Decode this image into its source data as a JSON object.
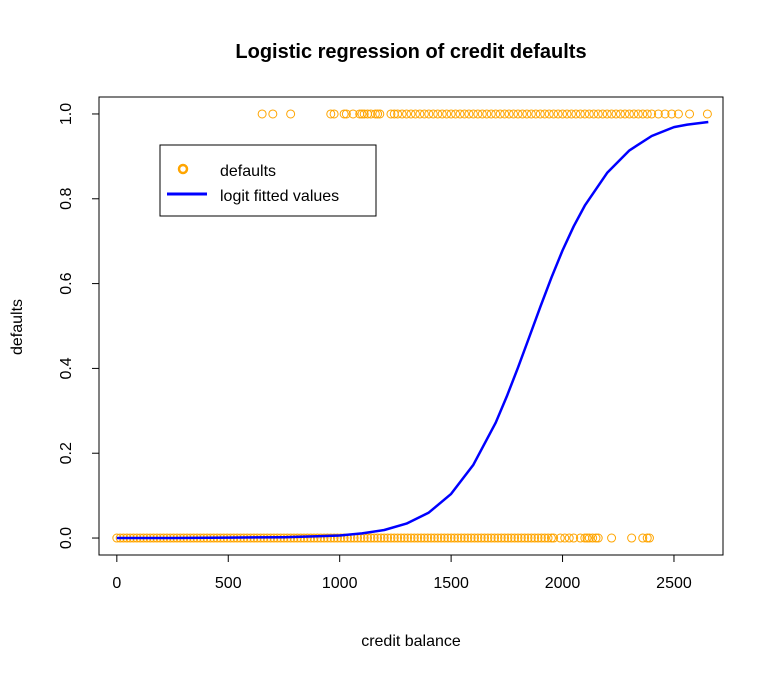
{
  "colors": {
    "points": "#FFA500",
    "fitted_line": "#0000FF",
    "axes": "#000000",
    "background": "#FFFFFF"
  },
  "chart_data": {
    "type": "scatter",
    "title": "Logistic regression of credit defaults",
    "xlabel": "credit balance",
    "ylabel": "defaults",
    "xlim": [
      -80,
      2720
    ],
    "ylim": [
      -0.04,
      1.04
    ],
    "x_ticks": [
      0,
      500,
      1000,
      1500,
      2000,
      2500
    ],
    "y_ticks": [
      0.0,
      0.2,
      0.4,
      0.6,
      0.8,
      1.0
    ],
    "x_tick_labels": [
      "0",
      "500",
      "1000",
      "1500",
      "2000",
      "2500"
    ],
    "y_tick_labels": [
      "0.0",
      "0.2",
      "0.4",
      "0.6",
      "0.8",
      "1.0"
    ],
    "grid": false,
    "legend": {
      "placement": "top-left",
      "entries": [
        {
          "label": "defaults",
          "symbol": "open-circle"
        },
        {
          "label": "logit fitted values",
          "symbol": "line"
        }
      ]
    },
    "series": [
      {
        "name": "defaults",
        "kind": "points",
        "points_y1_x": [
          652,
          700,
          780,
          960,
          975,
          1020,
          1030,
          1060,
          1090,
          1100,
          1110,
          1125,
          1140,
          1160,
          1170,
          1180,
          1230,
          1245,
          1260,
          1280,
          1300,
          1320,
          1340,
          1360,
          1380,
          1400,
          1420,
          1440,
          1460,
          1480,
          1500,
          1520,
          1540,
          1560,
          1580,
          1600,
          1620,
          1640,
          1660,
          1680,
          1700,
          1720,
          1740,
          1760,
          1780,
          1800,
          1820,
          1840,
          1860,
          1880,
          1900,
          1920,
          1940,
          1960,
          1980,
          2000,
          2020,
          2040,
          2060,
          2080,
          2100,
          2120,
          2140,
          2160,
          2180,
          2200,
          2220,
          2240,
          2260,
          2280,
          2300,
          2320,
          2340,
          2360,
          2380,
          2400,
          2430,
          2460,
          2490,
          2520,
          2570,
          2650
        ],
        "points_y0_x_dense_range": [
          0,
          1950
        ],
        "points_y0_x_sparse": [
          1960,
          1990,
          2010,
          2030,
          2050,
          2080,
          2100,
          2110,
          2120,
          2135,
          2150,
          2160,
          2220,
          2310,
          2360,
          2380,
          2390
        ]
      },
      {
        "name": "logit fitted values",
        "kind": "line",
        "x": [
          0,
          250,
          500,
          750,
          900,
          1000,
          1100,
          1200,
          1300,
          1400,
          1500,
          1600,
          1700,
          1750,
          1800,
          1850,
          1900,
          1950,
          2000,
          2050,
          2100,
          2200,
          2300,
          2400,
          2500,
          2560,
          2654
        ],
        "y": [
          0.0,
          0.0,
          0.001,
          0.002,
          0.004,
          0.006,
          0.011,
          0.019,
          0.034,
          0.06,
          0.104,
          0.173,
          0.272,
          0.334,
          0.402,
          0.473,
          0.545,
          0.614,
          0.678,
          0.735,
          0.784,
          0.861,
          0.914,
          0.948,
          0.969,
          0.975,
          0.981
        ]
      }
    ]
  }
}
